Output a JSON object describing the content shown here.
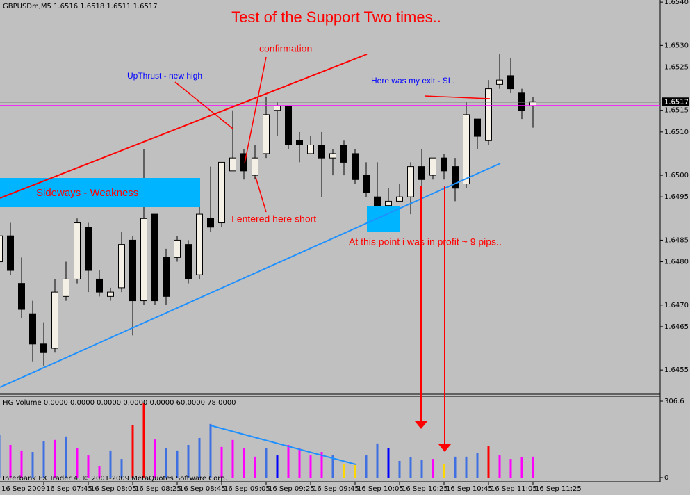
{
  "chart_data": [
    {
      "type": "candlestick",
      "header": "GBPUSDm,M5  1.6516 1.6518 1.6511 1.6517",
      "title": "Test of the Support Two times..",
      "annotations": [
        "confirmation",
        "UpThrust - new high",
        "Here was my exit - SL.",
        "Sideways - Weakness",
        "I entered here short",
        "At this point i was in profit ~ 9 pips.."
      ],
      "categories": [
        "16 Sep 2009",
        null,
        null,
        null,
        "16 Sep 07:45",
        null,
        null,
        null,
        "16 Sep 08:05",
        null,
        null,
        null,
        "16 Sep 08:25",
        null,
        null,
        null,
        "16 Sep 08:45",
        null,
        null,
        null,
        "16 Sep 09:05",
        null,
        null,
        null,
        "16 Sep 09:25",
        null,
        null,
        null,
        "16 Sep 09:45",
        null,
        null,
        null,
        "16 Sep 10:05",
        null,
        null,
        null,
        "16 Sep 10:25",
        null,
        null,
        null,
        "16 Sep 10:45",
        null,
        null,
        null,
        "16 Sep 11:05",
        null,
        null,
        null,
        "16 Sep 11:25"
      ],
      "open": [
        1.648,
        1.6486,
        1.6475,
        1.6468,
        1.6461,
        1.646,
        1.6472,
        1.6476,
        1.6488,
        1.6476,
        1.6472,
        1.6474,
        1.6485,
        1.6471,
        1.6491,
        1.6481,
        1.6481,
        1.6484,
        1.6477,
        1.649,
        1.6489,
        1.6501,
        1.6505,
        1.65,
        1.6505,
        1.6515,
        1.6516,
        1.6508,
        1.6505,
        1.6507,
        1.6504,
        1.6507,
        1.6505,
        1.65,
        1.6495,
        1.6493,
        1.6494,
        1.6495,
        1.6502,
        1.65,
        1.6504,
        1.6502,
        1.6498,
        1.6513,
        1.6508,
        1.6521,
        1.6523,
        1.6519,
        1.6516
      ],
      "high": [
        1.6493,
        1.6489,
        1.6481,
        1.6471,
        1.6466,
        1.6476,
        1.648,
        1.649,
        1.6489,
        1.6478,
        1.6474,
        1.6487,
        1.6486,
        1.6506,
        1.6491,
        1.6483,
        1.6486,
        1.6485,
        1.6495,
        1.6502,
        1.6503,
        1.6515,
        1.6506,
        1.6507,
        1.6518,
        1.6517,
        1.6516,
        1.651,
        1.6509,
        1.651,
        1.6506,
        1.6508,
        1.6506,
        1.6503,
        1.6503,
        1.6497,
        1.6498,
        1.6503,
        1.6506,
        1.6504,
        1.6505,
        1.6504,
        1.6517,
        1.6513,
        1.6522,
        1.6528,
        1.6527,
        1.652,
        1.6518
      ],
      "low": [
        1.6478,
        1.6477,
        1.6467,
        1.6457,
        1.6456,
        1.6459,
        1.6471,
        1.6475,
        1.6473,
        1.6472,
        1.6471,
        1.6473,
        1.6463,
        1.647,
        1.647,
        1.647,
        1.648,
        1.6475,
        1.6476,
        1.6487,
        1.6488,
        1.6501,
        1.6499,
        1.6499,
        1.6504,
        1.6509,
        1.6506,
        1.6503,
        1.6505,
        1.6495,
        1.65,
        1.65,
        1.6498,
        1.6495,
        1.6492,
        1.6491,
        1.6494,
        1.6491,
        1.6491,
        1.6499,
        1.6499,
        1.6494,
        1.6497,
        1.6506,
        1.6507,
        1.652,
        1.6519,
        1.6513,
        1.6511
      ],
      "close": [
        1.6486,
        1.6478,
        1.6469,
        1.6461,
        1.6459,
        1.6473,
        1.6476,
        1.6489,
        1.6478,
        1.6473,
        1.6473,
        1.6484,
        1.6471,
        1.649,
        1.6471,
        1.6472,
        1.6485,
        1.6476,
        1.6491,
        1.6488,
        1.6503,
        1.6504,
        1.6501,
        1.6504,
        1.6514,
        1.6516,
        1.6507,
        1.6507,
        1.6507,
        1.6504,
        1.6505,
        1.6503,
        1.6499,
        1.6496,
        1.6492,
        1.6494,
        1.6495,
        1.6502,
        1.6499,
        1.6504,
        1.6501,
        1.6497,
        1.6514,
        1.6509,
        1.652,
        1.6522,
        1.652,
        1.6515,
        1.6517
      ],
      "up_color": "#f5f0e6",
      "down_color": "#000000",
      "current_price": 1.6517,
      "ylim": [
        1.64494,
        1.65405
      ],
      "yticks": [
        {
          "value": 1.654,
          "label": "1.6540"
        },
        {
          "value": 1.653,
          "label": "1.6530"
        },
        1.6525,
        1.6515,
        {
          "value": 1.651,
          "label": "1.6510"
        },
        {
          "value": 1.65,
          "label": "1.6500"
        },
        1.6495,
        1.6485,
        {
          "value": 1.648,
          "label": "1.6480"
        },
        {
          "value": 1.647,
          "label": "1.6470"
        },
        1.6465,
        1.6455
      ]
    },
    {
      "type": "bar",
      "header": "HG Volume 0.0000 0.0000 0.0000 0.0000 0.0000 60.0000 78.0000",
      "footer": "Interbank FX Trader 4, © 2001-2009 MetaQuotes Software Corp.",
      "values": [
        173,
        131,
        109,
        103,
        145,
        151,
        165,
        117,
        89,
        47,
        109,
        75,
        209,
        300,
        153,
        117,
        109,
        131,
        159,
        215,
        123,
        151,
        117,
        84,
        117,
        89,
        131,
        117,
        89,
        103,
        89,
        53,
        53,
        89,
        137,
        117,
        67,
        81,
        70,
        75,
        53,
        84,
        84,
        98,
        126,
        89,
        75,
        81,
        84
      ],
      "colors": [
        "#3f6fe0",
        "#ff00ff",
        "#ff00ff",
        "#3f6fe0",
        "#3f6fe0",
        "#ff00ff",
        "#3f6fe0",
        "#ff00ff",
        "#ff00ff",
        "#ff00ff",
        "#3f6fe0",
        "#3f6fe0",
        "#ff0000",
        "#ff0000",
        "#ff00ff",
        "#3f6fe0",
        "#3f6fe0",
        "#3f6fe0",
        "#3f6fe0",
        "#3f6fe0",
        "#ff00ff",
        "#ff00ff",
        "#ff00ff",
        "#ff00ff",
        "#3f6fe0",
        "#0000ff",
        "#ff00ff",
        "#ff00ff",
        "#ff00ff",
        "#ff00ff",
        "#3f6fe0",
        "#ffd700",
        "#ffd700",
        "#3f6fe0",
        "#3f6fe0",
        "#0000ff",
        "#3f6fe0",
        "#3f6fe0",
        "#3f6fe0",
        "#ff00ff",
        "#ffd700",
        "#3f6fe0",
        "#3f6fe0",
        "#3f6fe0",
        "#ff0000",
        "#ff00ff",
        "#ff00ff",
        "#ff00ff",
        "#ff00ff"
      ],
      "ylim": [
        0,
        306.6
      ],
      "yticks": [
        0,
        306.6
      ]
    }
  ]
}
